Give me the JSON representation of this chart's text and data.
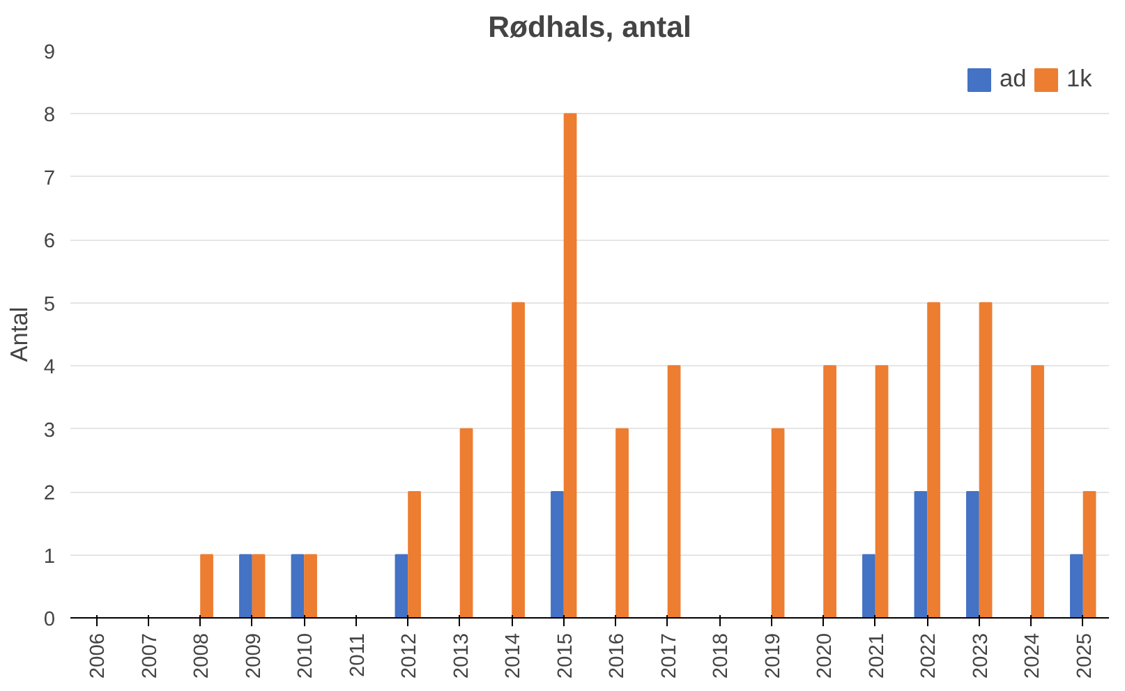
{
  "chart_data": {
    "type": "bar",
    "title": "Rødhals, antal",
    "ylabel": "Antal",
    "categories": [
      "2006",
      "2007",
      "2008",
      "2009",
      "2010",
      "2011",
      "2012",
      "2013",
      "2014",
      "2015",
      "2016",
      "2017",
      "2018",
      "2019",
      "2020",
      "2021",
      "2022",
      "2023",
      "2024",
      "2025"
    ],
    "series": [
      {
        "name": "ad",
        "color": "#4472c4",
        "values": [
          0,
          0,
          0,
          1,
          1,
          0,
          1,
          0,
          0,
          2,
          0,
          0,
          0,
          0,
          0,
          1,
          2,
          2,
          0,
          1
        ]
      },
      {
        "name": "1k",
        "color": "#ed7d31",
        "values": [
          0,
          0,
          1,
          1,
          1,
          0,
          2,
          3,
          5,
          8,
          3,
          4,
          0,
          3,
          4,
          4,
          5,
          5,
          4,
          2
        ]
      }
    ],
    "ylim": [
      0,
      9
    ],
    "yticks": [
      0,
      1,
      2,
      3,
      4,
      5,
      6,
      7,
      8,
      9
    ],
    "grid": "y",
    "legend": "top right"
  }
}
